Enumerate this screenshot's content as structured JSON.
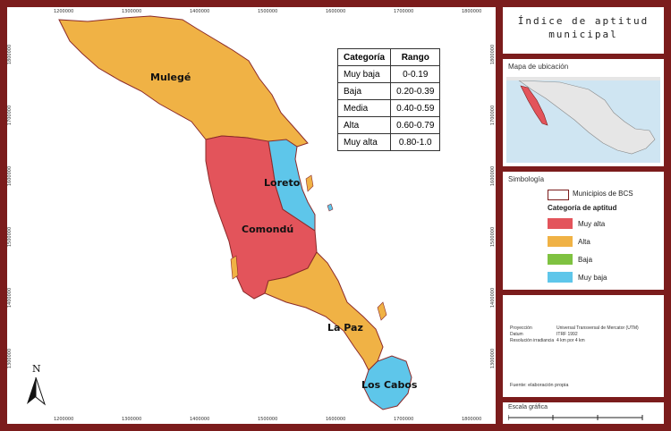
{
  "title": {
    "line1": "Índice de aptitud",
    "line2": "municipal"
  },
  "map": {
    "ticks_top": [
      "1200000",
      "1300000",
      "1400000",
      "1500000",
      "1600000",
      "1700000",
      "1800000"
    ],
    "ticks_side": [
      "1800000",
      "1700000",
      "1600000",
      "1500000",
      "1400000",
      "1300000"
    ],
    "north": "N",
    "regions": [
      {
        "name": "Mulegé",
        "category": "Alta"
      },
      {
        "name": "Loreto",
        "category": "Muy baja"
      },
      {
        "name": "Comondú",
        "category": "Muy alta"
      },
      {
        "name": "La Paz",
        "category": "Alta"
      },
      {
        "name": "Los Cabos",
        "category": "Muy baja"
      }
    ]
  },
  "range_table": {
    "headers": [
      "Categoría",
      "Rango"
    ],
    "rows": [
      [
        "Muy baja",
        "0-0.19"
      ],
      [
        "Baja",
        "0.20-0.39"
      ],
      [
        "Media",
        "0.40-0.59"
      ],
      [
        "Alta",
        "0.60-0.79"
      ],
      [
        "Muy alta",
        "0.80-1.0"
      ]
    ]
  },
  "location_map": {
    "heading": "Mapa de ubicación"
  },
  "symbology": {
    "heading": "Simbología",
    "boundary_label": "Municipios de BCS",
    "category_heading": "Categoría de aptitud",
    "items": [
      {
        "label": "Muy alta",
        "color": "#e3545b"
      },
      {
        "label": "Alta",
        "color": "#f0b245"
      },
      {
        "label": "Baja",
        "color": "#7fc241"
      },
      {
        "label": "Muy baja",
        "color": "#5ec6ea"
      }
    ]
  },
  "projection": {
    "rows": [
      [
        "Proyección",
        "Universal Transversal de Mercator (UTM)"
      ],
      [
        "Datum",
        "ITRF 1992"
      ],
      [
        "Resolución irradiancia",
        "4 km por 4 km"
      ]
    ],
    "source": "Fuente: elaboración propia"
  },
  "scale": {
    "heading": "Escala gráfica"
  },
  "colors": {
    "frame": "#7b1c1c",
    "alta": "#f0b245",
    "muy_alta": "#e3545b",
    "muy_baja": "#5ec6ea",
    "baja": "#7fc241",
    "boundary": "#8b2a2a"
  }
}
